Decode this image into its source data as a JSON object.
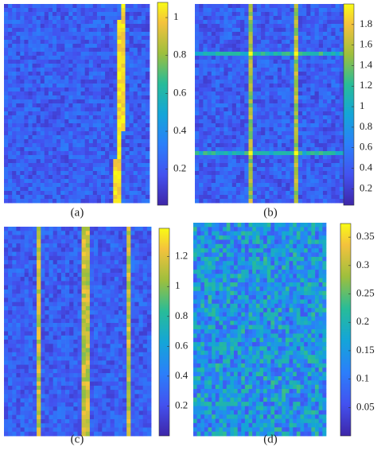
{
  "chart_data": [
    {
      "type": "heatmap",
      "caption": "(a)",
      "ylim": [
        0.01,
        1.08
      ],
      "yticks": [
        0.2,
        0.4,
        0.6,
        0.8,
        1
      ]
    },
    {
      "type": "heatmap",
      "caption": "(b)",
      "ylim": [
        0.04,
        2.0
      ],
      "yticks": [
        0.2,
        0.4,
        0.6,
        0.8,
        1,
        1.2,
        1.4,
        1.6,
        1.8
      ]
    },
    {
      "type": "heatmap",
      "caption": "(c)",
      "ylim": [
        0,
        1.39
      ],
      "yticks": [
        0.2,
        0.4,
        0.6,
        0.8,
        1,
        1.2
      ]
    },
    {
      "type": "heatmap",
      "caption": "(d)",
      "ylim": [
        0,
        0.374
      ],
      "yticks": [
        0.05,
        0.1,
        0.15,
        0.2,
        0.25,
        0.3,
        0.35
      ]
    }
  ]
}
